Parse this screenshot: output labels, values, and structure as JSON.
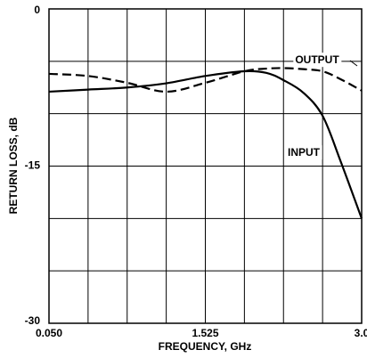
{
  "chart_data": {
    "type": "line",
    "xlabel": "FREQUENCY, GHz",
    "ylabel": "RETURN LOSS, dB",
    "x": [
      0.05,
      0.41875,
      0.7875,
      1.15625,
      1.525,
      1.89375,
      2.1,
      2.2625,
      2.45,
      2.63125,
      2.8,
      3.0
    ],
    "series": [
      {
        "name": "INPUT",
        "color": "#000000",
        "dash": false,
        "values": [
          -7.9,
          -7.7,
          -7.5,
          -7.1,
          -6.4,
          -5.95,
          -6.1,
          -6.8,
          -8.0,
          -10.2,
          -14.5,
          -20.0
        ]
      },
      {
        "name": "OUTPUT",
        "color": "#000000",
        "dash": true,
        "values": [
          -6.2,
          -6.4,
          -7.05,
          -7.9,
          -7.05,
          -5.95,
          -5.7,
          -5.65,
          -5.75,
          -5.95,
          -6.7,
          -7.8
        ]
      }
    ],
    "xlim": [
      0.05,
      3.0
    ],
    "ylim": [
      -30,
      0
    ],
    "xticks": [
      {
        "value": 0.05,
        "label": "0.050"
      },
      1.525,
      {
        "value": 3.0,
        "label": "3.0"
      }
    ],
    "yticks": [
      0,
      -15,
      -30
    ],
    "xgrid": [
      0.05,
      0.41875,
      0.7875,
      1.15625,
      1.525,
      1.89375,
      2.2625,
      2.63125,
      3.0
    ],
    "ygrid": [
      0,
      -5,
      -10,
      -15,
      -20,
      -25,
      -30
    ],
    "grid": true
  }
}
